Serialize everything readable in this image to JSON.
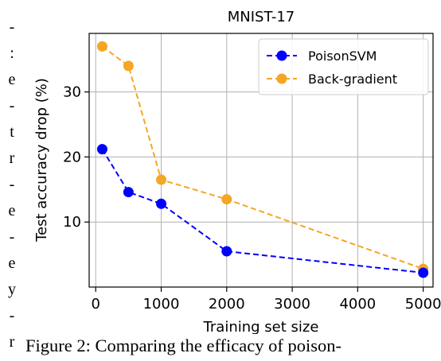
{
  "left_text_fragments": [
    "-",
    ":",
    "e",
    "-",
    "t",
    "r",
    "-",
    "e",
    "-",
    "e",
    "y",
    "-",
    "r"
  ],
  "caption": "Figure 2:  Comparing the efficacy of poison-",
  "chart_data": {
    "type": "line",
    "title": "MNIST-17",
    "xlabel": "Training set size",
    "ylabel": "Test accuracy drop (%)",
    "xlim": [
      -100,
      5150
    ],
    "ylim": [
      0,
      39
    ],
    "xticks": [
      0,
      1000,
      2000,
      3000,
      4000,
      5000
    ],
    "yticks": [
      10,
      20,
      30
    ],
    "grid": true,
    "legend_position": "top-right",
    "series": [
      {
        "name": "PoisonSVM",
        "color": "#0000ff",
        "x": [
          100,
          500,
          1000,
          2000,
          5000
        ],
        "y": [
          21.2,
          14.6,
          12.8,
          5.5,
          2.2
        ]
      },
      {
        "name": "Back-gradient",
        "color": "#f5a623",
        "x": [
          100,
          500,
          1000,
          2000,
          5000
        ],
        "y": [
          37.0,
          34.0,
          16.5,
          13.5,
          2.8
        ]
      }
    ]
  }
}
